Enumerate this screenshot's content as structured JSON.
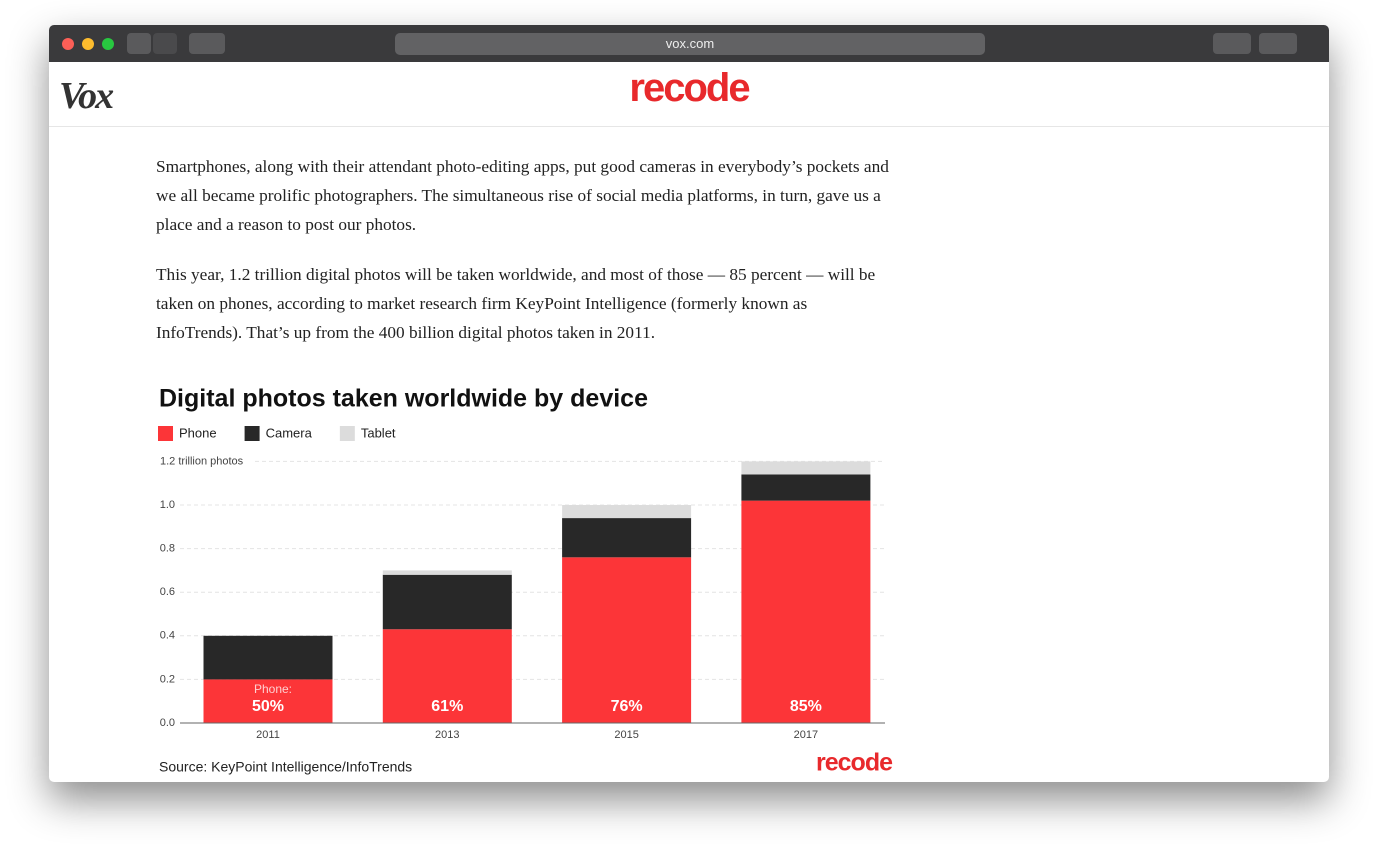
{
  "browser": {
    "url": "vox.com"
  },
  "header": {
    "left_logo": "Vox",
    "center_logo": "recode"
  },
  "article": {
    "paragraphs": [
      "Smartphones, along with their attendant photo-editing apps, put good cameras in everybody’s pockets and we all became prolific photographers. The simultaneous rise of social media platforms, in turn, gave us a place and a reason to post our photos.",
      "This year, 1.2 trillion digital photos will be taken worldwide, and most of those — 85 percent — will be taken on phones, according to market research firm KeyPoint Intelligence (formerly known as InfoTrends). That’s up from the 400 billion digital photos taken in 2011."
    ]
  },
  "chart_data": {
    "type": "stacked_bar",
    "title": "Digital photos taken worldwide by device",
    "categories": [
      "2011",
      "2013",
      "2015",
      "2017"
    ],
    "series": [
      {
        "name": "Phone",
        "color": "#fc3538",
        "values": [
          0.2,
          0.43,
          0.76,
          1.02
        ]
      },
      {
        "name": "Camera",
        "color": "#282828",
        "values": [
          0.2,
          0.25,
          0.18,
          0.12
        ]
      },
      {
        "name": "Tablet",
        "color": "#dcdcdc",
        "values": [
          0,
          0.02,
          0.06,
          0.06
        ]
      }
    ],
    "share_labels": [
      "50%",
      "61%",
      "76%",
      "85%"
    ],
    "annotation": "Phone:",
    "ylim": [
      0,
      1.2
    ],
    "yticks": [
      {
        "value": 0,
        "label": "0.0"
      },
      0.2,
      0.4,
      0.6,
      0.8,
      {
        "value": 1,
        "label": "1.0"
      },
      {
        "value": 1.2,
        "label": "1.2 trillion photos"
      }
    ],
    "grid": true,
    "source": "Source: KeyPoint Intelligence/InfoTrends",
    "logo": "recode"
  }
}
